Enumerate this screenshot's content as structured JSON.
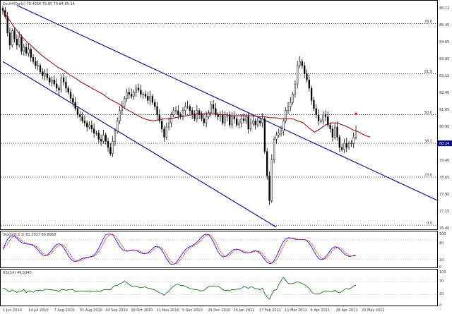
{
  "header": {
    "main_info": "Dx,H4(Daily) 79.4036 79.85 79.84 80.14",
    "stoch_info": "Stoch(8,3,3) 81.3017 80.8968",
    "rsi_info": "RSI(14) 49.5040"
  },
  "colors": {
    "background": "#ffffff",
    "candle": "#000000",
    "moving_average": "#8b0000",
    "channel": "#00008b",
    "fib_level": "#00008b",
    "stoch_main": "#0000ff",
    "stoch_signal": "#ff0000",
    "rsi": "#006400",
    "arrow": "#ff0000",
    "panel_border": "#000000"
  },
  "price_axis": {
    "labels": [
      "86.11",
      "85.40",
      "84.65",
      "83.90",
      "83.15",
      "82.40",
      "81.65",
      "80.90",
      "80.15",
      "79.40",
      "78.65",
      "77.90",
      "77.15",
      "76.40"
    ]
  },
  "fib_levels": [
    {
      "label": "78.6",
      "price": 85.45
    },
    {
      "label": "61.8",
      "price": 83.0
    },
    {
      "label": "50.0",
      "price": 81.0
    },
    {
      "label": "38.2",
      "price": 79.6
    },
    {
      "label": "23.6",
      "price": 77.95
    },
    {
      "label": "0.0",
      "price": 75.6
    }
  ],
  "time_axis": {
    "labels": [
      "1 Jun 2010",
      "14 Jul 2010",
      "7 Aug 2010",
      "31 Aug 2010",
      "24 Sep 2010",
      "18 Oct 2010",
      "11 Nov 2010",
      "5 Dec 2010",
      "29 Dec 2010",
      "24 Jan 2011",
      "17 Feb 2011",
      "11 Mar 2011",
      "6 Apr 2011",
      "28 Apr 2011",
      "20 May 2011"
    ]
  },
  "chart_data": [
    {
      "type": "ohlc",
      "price_range": [
        75.5,
        86.4
      ],
      "current_price": "80.24",
      "channel": {
        "upper": {
          "from": {
            "bar": 6,
            "price": 86.35
          },
          "to": {
            "bar": 170,
            "price": 77.65
          }
        },
        "lower": {
          "from": {
            "bar": 0,
            "price": 83.6
          },
          "to": {
            "bar": 117,
            "price": 75.5
          }
        }
      },
      "close_series": [
        86.1,
        85.8,
        85.0,
        84.4,
        85.1,
        84.7,
        84.4,
        84.8,
        84.1,
        84.3,
        84.0,
        84.2,
        83.8,
        83.6,
        83.4,
        83.4,
        83.1,
        82.9,
        83.0,
        82.8,
        82.6,
        82.7,
        82.5,
        82.3,
        82.2,
        82.8,
        82.6,
        82.3,
        82.1,
        81.8,
        81.6,
        81.3,
        81.0,
        80.9,
        80.7,
        80.6,
        80.4,
        80.5,
        80.3,
        80.1,
        80.1,
        79.8,
        79.7,
        80.0,
        79.7,
        79.4,
        79.1,
        79.7,
        80.2,
        80.7,
        81.2,
        81.4,
        81.8,
        82.1,
        82.0,
        81.9,
        82.1,
        82.3,
        82.2,
        82.0,
        82.0,
        81.9,
        81.7,
        81.9,
        81.6,
        81.4,
        81.0,
        80.7,
        80.3,
        79.9,
        80.4,
        80.6,
        81.0,
        81.2,
        81.2,
        81.0,
        80.9,
        81.2,
        81.4,
        81.4,
        81.2,
        81.0,
        80.8,
        81.2,
        81.0,
        80.8,
        80.6,
        80.9,
        81.1,
        81.5,
        81.3,
        81.0,
        80.9,
        81.0,
        80.6,
        80.9,
        81.0,
        80.5,
        80.9,
        80.8,
        80.5,
        80.6,
        80.8,
        80.7,
        80.9,
        80.3,
        80.6,
        80.7,
        80.5,
        80.7,
        80.6,
        80.8,
        79.2,
        78.0,
        76.8,
        78.8,
        79.8,
        80.0,
        80.1,
        80.2,
        80.7,
        81.2,
        81.4,
        81.6,
        82.0,
        82.5,
        83.4,
        83.6,
        83.4,
        83.0,
        82.7,
        82.3,
        81.7,
        81.3,
        81.0,
        80.7,
        80.7,
        81.0,
        80.9,
        80.5,
        80.3,
        79.9,
        80.4,
        79.9,
        79.4,
        79.3,
        79.6,
        79.4,
        79.6,
        79.6,
        79.9,
        80.2
      ],
      "ma_series": [
        86.1,
        85.7,
        85.3,
        84.95,
        84.65,
        84.4,
        84.15,
        83.9,
        83.7,
        83.5,
        83.3,
        83.15,
        82.95,
        82.8,
        82.6,
        82.45,
        82.3,
        82.15,
        82.0,
        81.8,
        81.65,
        81.5,
        81.3,
        81.15,
        81.0,
        80.85,
        80.75,
        80.7,
        80.75,
        80.8,
        80.8,
        80.85,
        80.9,
        80.95,
        81.0,
        81.05,
        81.05,
        81.05,
        81.05,
        81.0,
        81.0,
        80.95,
        80.95,
        80.95,
        80.95,
        80.95,
        80.9,
        80.9,
        80.85,
        80.85,
        80.8,
        80.8,
        80.8,
        80.7,
        80.6,
        80.35,
        80.15,
        80.3,
        80.5,
        80.6,
        80.6,
        80.5,
        80.4,
        80.25,
        80.15,
        80.0,
        79.9
      ]
    },
    {
      "type": "line",
      "name": "Stoch(8,3,3)",
      "levels": [
        "100",
        "80",
        "20",
        "0"
      ],
      "ylim": [
        0,
        100
      ]
    },
    {
      "type": "line",
      "name": "RSI(14)",
      "levels": [
        "100",
        "70",
        "30",
        "0"
      ],
      "ylim": [
        0,
        100
      ]
    }
  ]
}
